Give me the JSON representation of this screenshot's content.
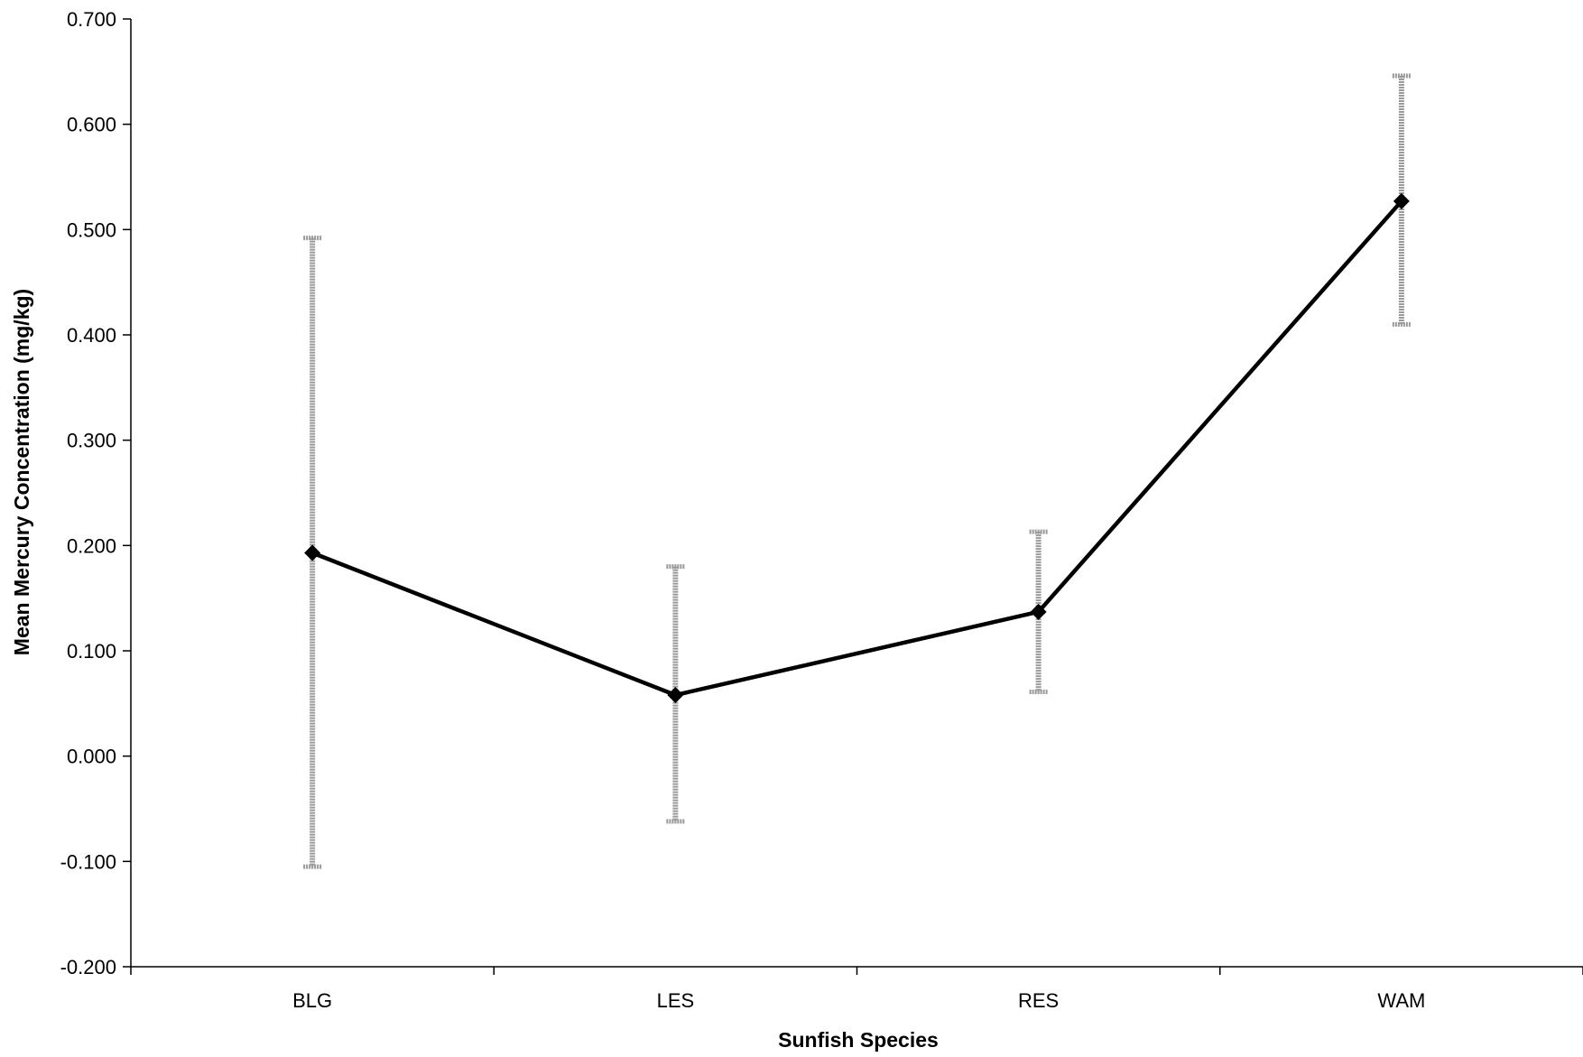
{
  "chart_data": {
    "type": "line",
    "title": "",
    "xlabel": "Sunfish Species",
    "ylabel": "Mean Mercury Concentration (mg/kg)",
    "categories": [
      "BLG",
      "LES",
      "RES",
      "WAM"
    ],
    "series": [
      {
        "values": [
          0.193,
          0.058,
          0.137,
          0.527
        ],
        "error_upper": [
          0.492,
          0.18,
          0.213,
          0.646
        ],
        "error_lower": [
          -0.105,
          -0.062,
          0.061,
          0.41
        ]
      }
    ],
    "ylim": [
      -0.2,
      0.7
    ],
    "yticks": [
      -0.2,
      -0.1,
      0.0,
      0.1,
      0.2,
      0.3,
      0.4,
      0.5,
      0.6,
      0.7
    ],
    "ytick_labels": [
      "-0.200",
      "-0.100",
      "0.000",
      "0.100",
      "0.200",
      "0.300",
      "0.400",
      "0.500",
      "0.600",
      "0.700"
    ],
    "grid": false,
    "legend": "none",
    "marker": "diamond",
    "colors": {
      "line": "#000000",
      "marker": "#000000",
      "error_bar": "#9a9a9a",
      "axis": "#000000"
    }
  }
}
